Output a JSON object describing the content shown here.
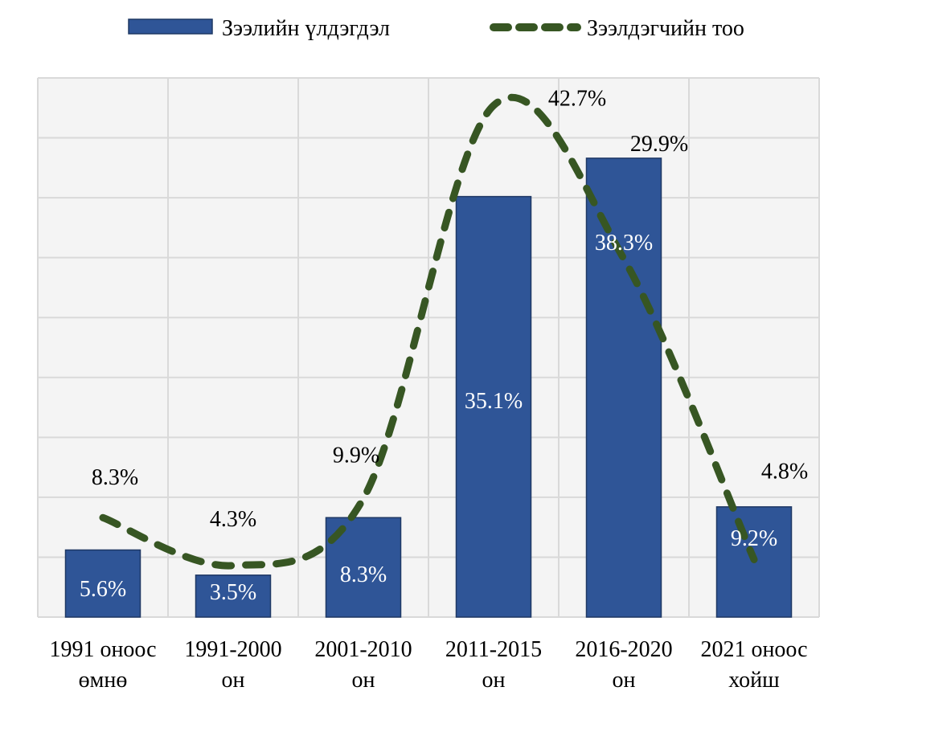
{
  "chart_data": {
    "type": "bar+line",
    "title": "",
    "categories": [
      [
        "1991 оноос",
        "өмнө"
      ],
      [
        "1991-2000",
        "он"
      ],
      [
        "2001-2010",
        "он"
      ],
      [
        "2011-2015",
        "он"
      ],
      [
        "2016-2020",
        "он"
      ],
      [
        "2021 оноос",
        "хойш"
      ]
    ],
    "series": [
      {
        "name": "Зээлийн үлдэгдэл",
        "type": "bar",
        "color": "#2F5597",
        "values": [
          5.6,
          3.5,
          8.3,
          35.1,
          38.3,
          9.2
        ],
        "labels": [
          "5.6%",
          "3.5%",
          "8.3%",
          "35.1%",
          "38.3%",
          "9.2%"
        ]
      },
      {
        "name": "Зээлдэгчийн тоо",
        "type": "line",
        "style": "dashed",
        "color": "#375623",
        "values": [
          8.3,
          4.3,
          9.9,
          42.7,
          29.9,
          4.8
        ],
        "labels": [
          "8.3%",
          "4.3%",
          "9.9%",
          "42.7%",
          "29.9%",
          "4.8%"
        ]
      }
    ],
    "ylim": [
      0,
      45
    ],
    "ytick_step": 5,
    "yaxis_labels_shown": false,
    "grid": true,
    "legend_position": "top",
    "xlabel": "",
    "ylabel": ""
  }
}
